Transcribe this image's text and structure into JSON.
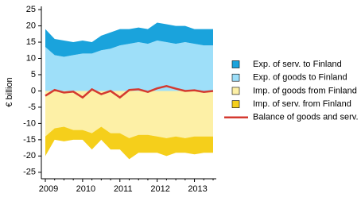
{
  "chart_data": {
    "type": "area",
    "y_label": "€ billion",
    "categories": [
      "2009",
      null,
      null,
      null,
      "2010",
      null,
      null,
      null,
      "2011",
      null,
      null,
      null,
      "2012",
      null,
      null,
      null,
      "2013",
      null,
      null
    ],
    "series": [
      {
        "name": "Exp. of serv. to Finland",
        "type": "area",
        "color": "#1aa3dc",
        "values": [
          5.5,
          5,
          5,
          4,
          4,
          3.5,
          4.5,
          5,
          5,
          4.5,
          4.5,
          4.5,
          5.5,
          5.5,
          5.5,
          5,
          4.5,
          5,
          5
        ]
      },
      {
        "name": "Exp. of goods to Finland",
        "type": "area",
        "color": "#9edff9",
        "values": [
          13.5,
          11,
          10.5,
          11,
          11.5,
          11.5,
          12.5,
          13,
          14,
          14.5,
          15,
          14.5,
          15.5,
          15,
          14.5,
          15,
          14.5,
          14,
          14
        ]
      },
      {
        "name": "Imp. of goods from Finland",
        "type": "area",
        "color": "#fdf0a6",
        "values": [
          -14,
          -11.5,
          -11,
          -12,
          -12,
          -13,
          -11,
          -13,
          -13,
          -14.5,
          -13.5,
          -13.5,
          -14,
          -14.5,
          -14,
          -14.5,
          -14,
          -14,
          -14
        ]
      },
      {
        "name": "Imp. of serv. from Finland",
        "type": "area",
        "color": "#f5cf1b",
        "values": [
          -6,
          -3.5,
          -4.5,
          -3,
          -3,
          -5,
          -4,
          -5,
          -5,
          -6.5,
          -5.5,
          -5.5,
          -5,
          -5.5,
          -5,
          -4.5,
          -5.5,
          -5,
          -5
        ]
      },
      {
        "name": "Balance of goods and serv.",
        "type": "line",
        "color": "#d43a30",
        "values": [
          -1.5,
          0.3,
          -0.5,
          -0.2,
          -2,
          0.5,
          -1,
          0,
          -2,
          0.3,
          0.5,
          -0.3,
          0.8,
          1.5,
          0.7,
          0,
          0.2,
          -0.3,
          0
        ]
      }
    ],
    "ylim": [
      -27,
      26
    ],
    "yticks": [
      25,
      20,
      15,
      10,
      5,
      0,
      -5,
      -10,
      -15,
      -20,
      -25
    ],
    "grid": false,
    "legend": "right"
  }
}
